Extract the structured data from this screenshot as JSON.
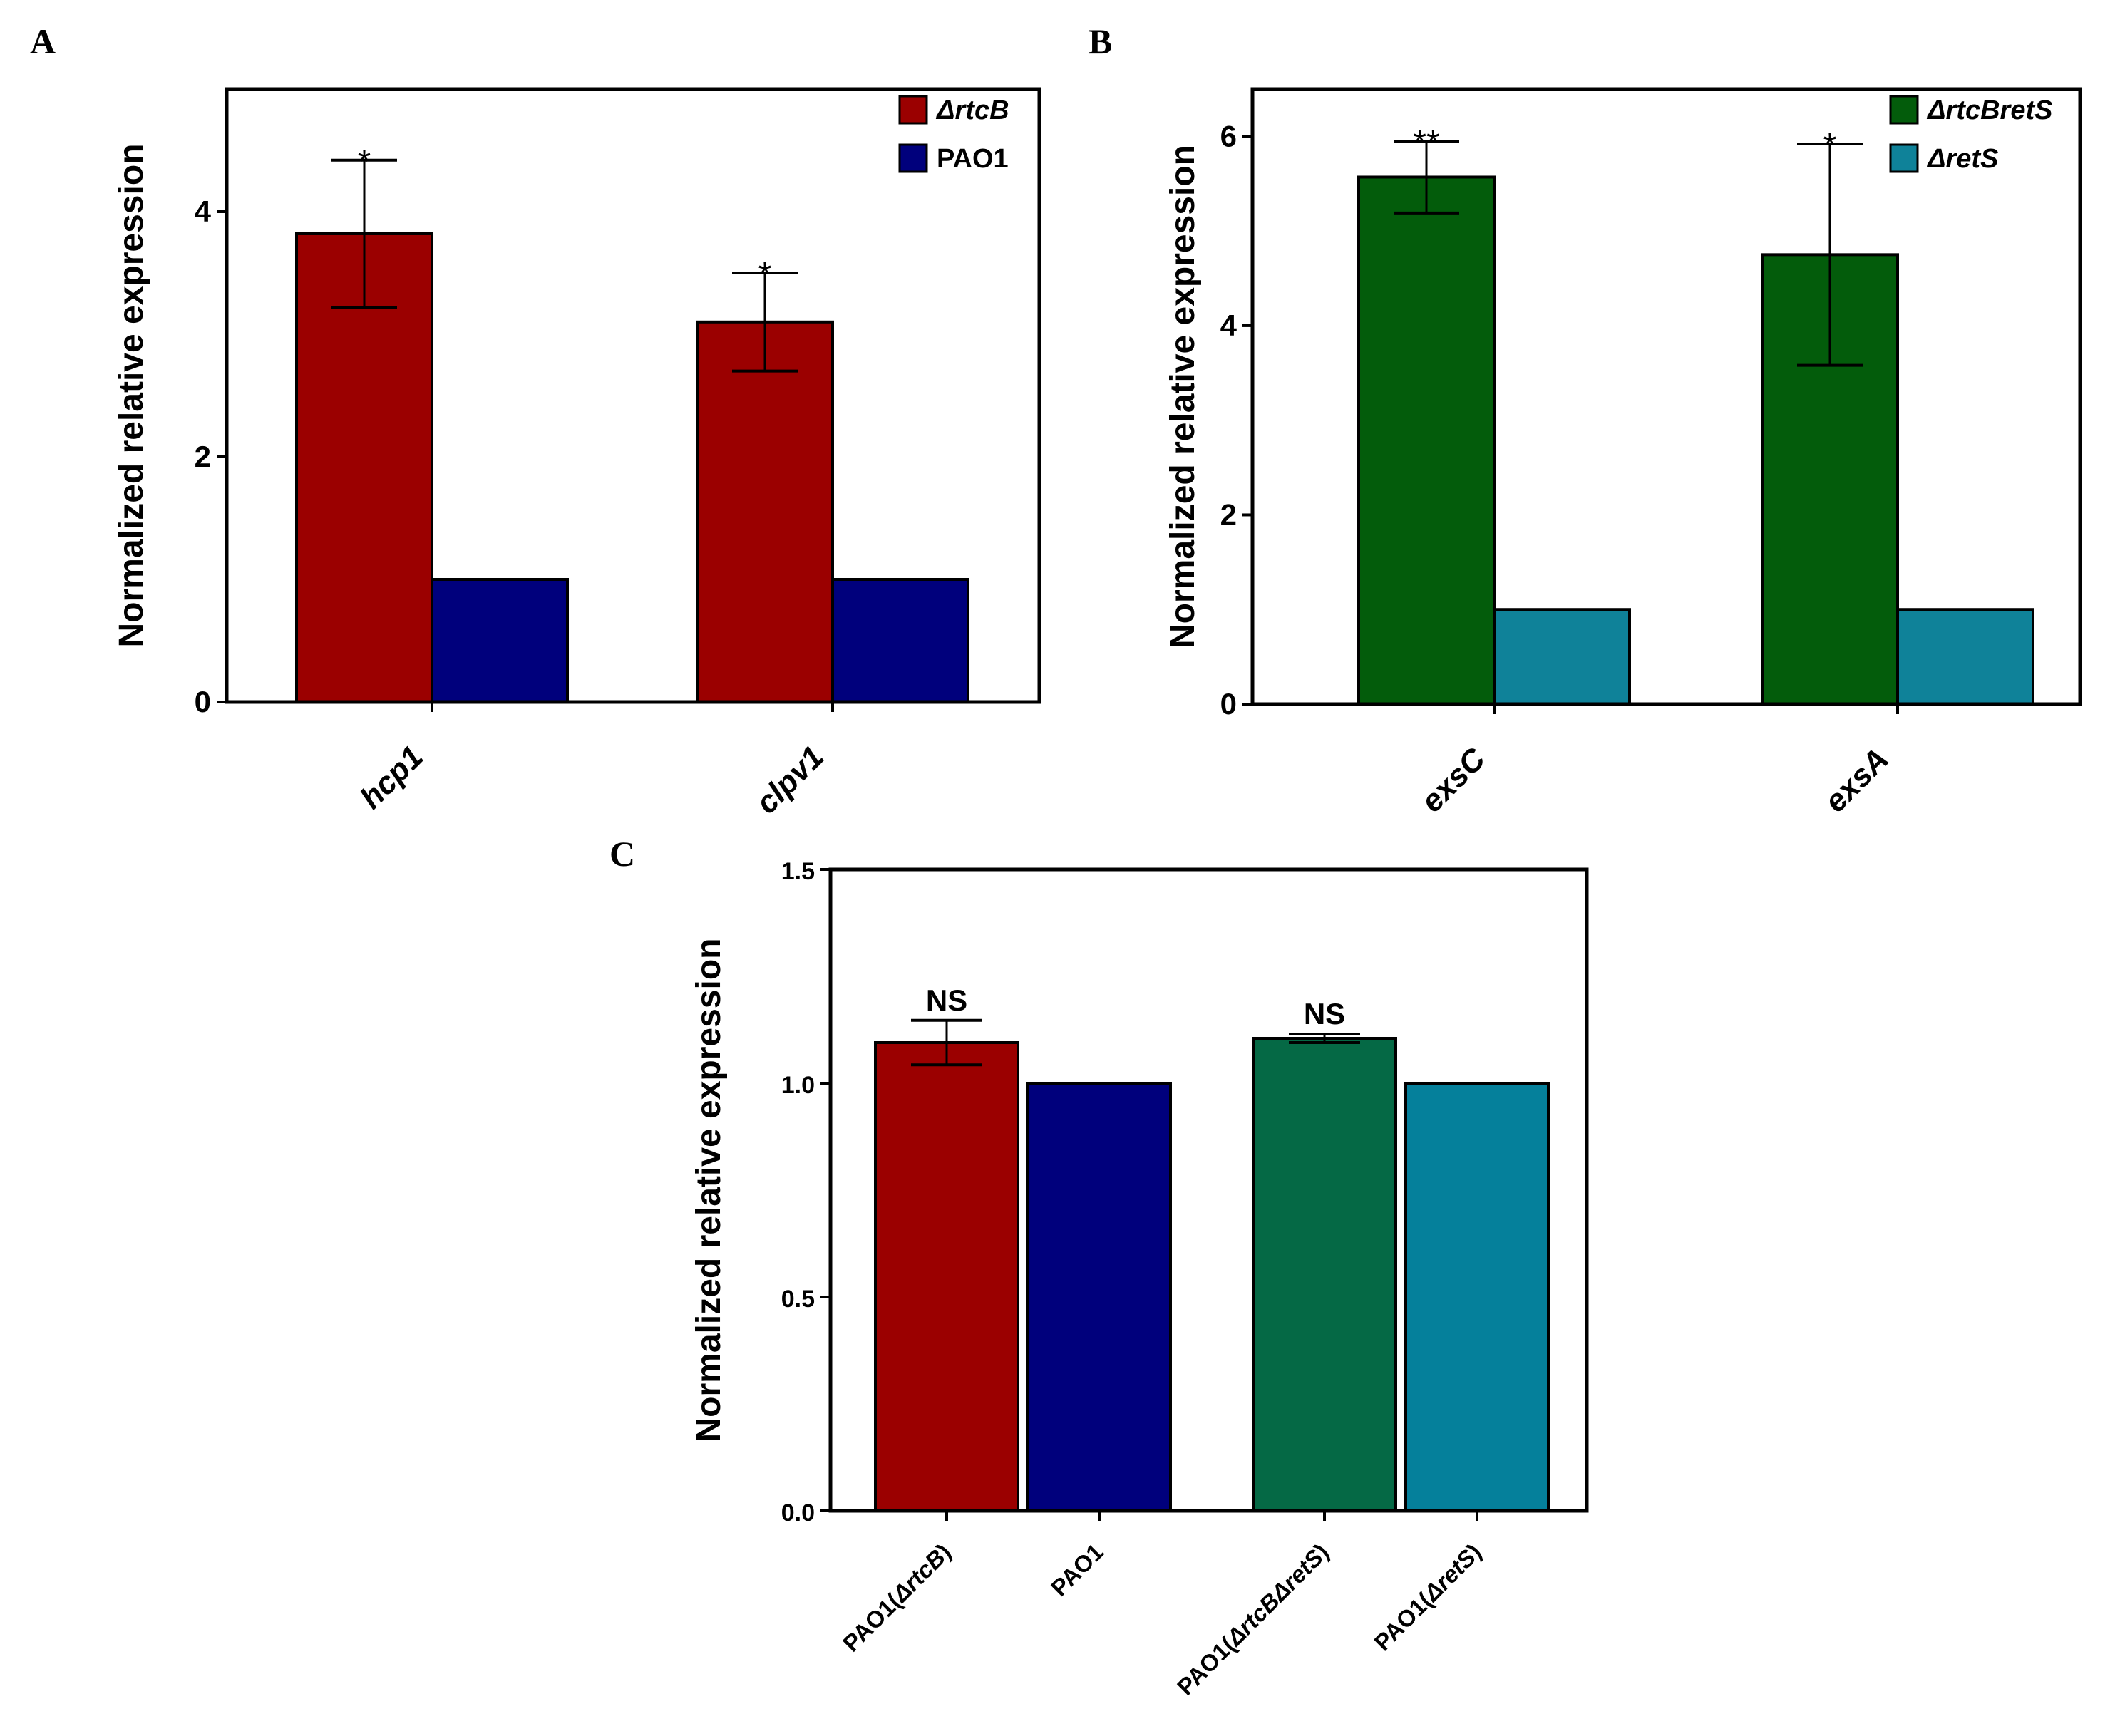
{
  "chart_data": [
    {
      "id": "A",
      "type": "bar",
      "panel_label": "A",
      "ylabel": "Normalized relative expression",
      "ylim": [
        0,
        5
      ],
      "yticks": [
        0,
        2,
        4
      ],
      "categories": [
        "hcp1",
        "clpv1"
      ],
      "categories_italic": true,
      "series": [
        {
          "name": "ΔrtcB",
          "italic": true,
          "color": "#9b0000",
          "values": [
            3.82,
            3.1
          ],
          "errors": [
            0.6,
            0.4
          ],
          "sig": [
            "*",
            "*"
          ]
        },
        {
          "name": "PAO1",
          "italic": false,
          "color": "#00007c",
          "values": [
            1.0,
            1.0
          ],
          "errors": [
            0,
            0
          ],
          "sig": [
            "",
            ""
          ]
        }
      ],
      "legend": "top-right"
    },
    {
      "id": "B",
      "type": "bar",
      "panel_label": "B",
      "ylabel": "Normalized relative expression",
      "ylim": [
        0,
        6.5
      ],
      "yticks": [
        0,
        2,
        4,
        6
      ],
      "categories": [
        "exsC",
        "exsA"
      ],
      "categories_italic": true,
      "series": [
        {
          "name": "ΔrtcBretS",
          "italic": true,
          "color": "#035c0b",
          "values": [
            5.57,
            4.75
          ],
          "errors": [
            0.38,
            1.17
          ],
          "sig": [
            "**",
            "*"
          ]
        },
        {
          "name": "ΔretS",
          "italic": true,
          "color": "#0f8299",
          "values": [
            1.0,
            1.0
          ],
          "errors": [
            0,
            0
          ],
          "sig": [
            "",
            ""
          ]
        }
      ],
      "legend": "top-right"
    },
    {
      "id": "C",
      "type": "bar",
      "panel_label": "C",
      "ylabel": "Normalized relative expression",
      "ylim": [
        0,
        1.5
      ],
      "yticks": [
        "0.0",
        "0.5",
        "1.0",
        "1.5"
      ],
      "categories": [
        "PAO1(ΔrtcB)",
        "PAO1",
        "PAO1(ΔrtcBΔretS)",
        "PAO1(ΔretS)"
      ],
      "categories_italic": false,
      "values": [
        1.095,
        1.0,
        1.105,
        1.0
      ],
      "errors": [
        0.052,
        0,
        0.01,
        0
      ],
      "colors": [
        "#9b0000",
        "#00007c",
        "#056945",
        "#05809b"
      ],
      "sig": [
        "NS",
        "",
        "NS",
        ""
      ]
    }
  ]
}
